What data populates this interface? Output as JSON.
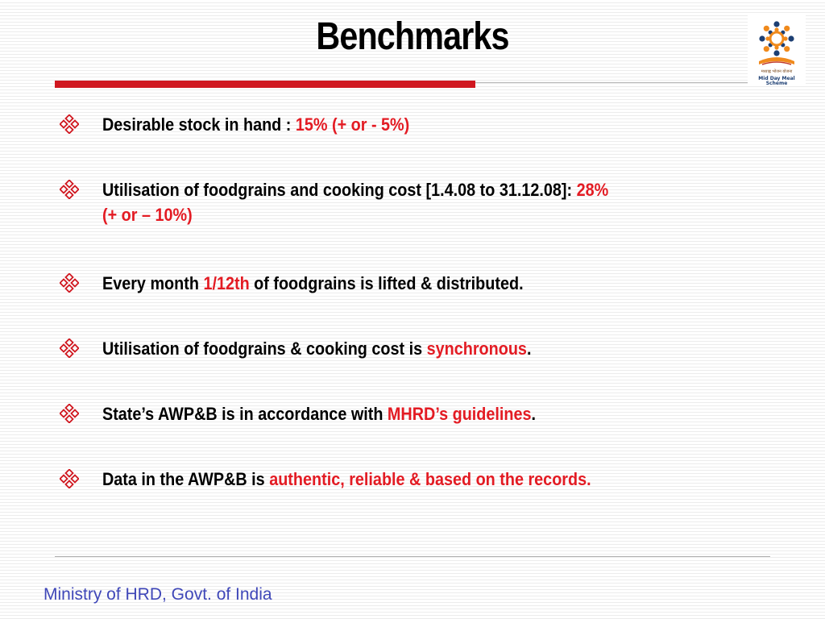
{
  "slide": {
    "title": "Benchmarks",
    "footer": "Ministry of HRD, Govt. of India",
    "logo": {
      "hindi_text": "मध्याह्न भोजन योजना",
      "english_text": "Mid Day Meal Scheme"
    }
  },
  "colors": {
    "accent": "#d0171f",
    "highlight": "#e31b23",
    "footer": "#3f47b8"
  },
  "bullet_icon": "diamond-four-bullet-icon",
  "bullets": [
    {
      "t1": "Desirable stock in hand : ",
      "h1": "15% (+ or - 5%)"
    },
    {
      "t1": "Utilisation of foodgrains and cooking cost [1.4.08 to 31.12.08]: ",
      "h1": "28%",
      "h2": "(+ or – 10%)"
    },
    {
      "t1": "Every month ",
      "h1": "1/12th",
      "t2": " of foodgrains is lifted & distributed."
    },
    {
      "t1": "Utilisation of foodgrains & cooking cost is ",
      "h1": "synchronous",
      "t2": "."
    },
    {
      "t1": "State’s AWP&B is in accordance with ",
      "h1": "MHRD’s guidelines",
      "t2": "."
    },
    {
      "t1": "Data in the AWP&B is ",
      "h1": "authentic, reliable & based on the records."
    }
  ]
}
